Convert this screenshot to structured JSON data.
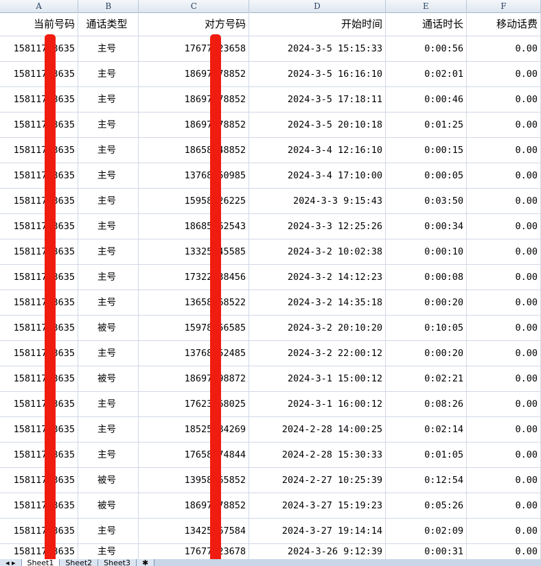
{
  "columns": [
    "A",
    "B",
    "C",
    "D",
    "E",
    "F"
  ],
  "headers": [
    "当前号码",
    "通话类型",
    "对方号码",
    "开始时间",
    "通话时长",
    "移动话费"
  ],
  "rows": [
    [
      "15811753635",
      "主号",
      "17677123658",
      "2024-3-5 15:15:33",
      "0:00:56",
      "0.00"
    ],
    [
      "15811753635",
      "主号",
      "18697378852",
      "2024-3-5 16:16:10",
      "0:02:01",
      "0.00"
    ],
    [
      "15811753635",
      "主号",
      "18697378852",
      "2024-3-5 17:18:11",
      "0:00:46",
      "0.00"
    ],
    [
      "15811753635",
      "主号",
      "18697378852",
      "2024-3-5 20:10:18",
      "0:01:25",
      "0.00"
    ],
    [
      "15811753635",
      "主号",
      "18658848852",
      "2024-3-4 12:16:10",
      "0:00:15",
      "0.00"
    ],
    [
      "15811753635",
      "主号",
      "13768250985",
      "2024-3-4 17:10:00",
      "0:00:05",
      "0.00"
    ],
    [
      "15811753635",
      "主号",
      "15958426225",
      "2024-3-3 9:15:43",
      "0:03:50",
      "0.00"
    ],
    [
      "15811753635",
      "主号",
      "18685562543",
      "2024-3-3 12:25:26",
      "0:00:34",
      "0.00"
    ],
    [
      "15811753635",
      "主号",
      "13325545585",
      "2024-3-2 10:02:38",
      "0:00:10",
      "0.00"
    ],
    [
      "15811753635",
      "主号",
      "17322538456",
      "2024-3-2 14:12:23",
      "0:00:08",
      "0.00"
    ],
    [
      "15811753635",
      "主号",
      "13658568522",
      "2024-3-2 14:35:18",
      "0:00:20",
      "0.00"
    ],
    [
      "15811753635",
      "被号",
      "15978156585",
      "2024-3-2 20:10:20",
      "0:10:05",
      "0.00"
    ],
    [
      "15811753635",
      "主号",
      "13768252485",
      "2024-3-2 22:00:12",
      "0:00:20",
      "0.00"
    ],
    [
      "15811753635",
      "被号",
      "18697598872",
      "2024-3-1 15:00:12",
      "0:02:21",
      "0.00"
    ],
    [
      "15811753635",
      "主号",
      "17623568025",
      "2024-3-1 16:00:12",
      "0:08:26",
      "0.00"
    ],
    [
      "15811753635",
      "主号",
      "18525584269",
      "2024-2-28 14:00:25",
      "0:02:14",
      "0.00"
    ],
    [
      "15811753635",
      "主号",
      "17658474844",
      "2024-2-28 15:30:33",
      "0:01:05",
      "0.00"
    ],
    [
      "15811753635",
      "被号",
      "13958265852",
      "2024-2-27 10:25:39",
      "0:12:54",
      "0.00"
    ],
    [
      "15811753635",
      "被号",
      "18697378852",
      "2024-3-27 15:19:23",
      "0:05:26",
      "0.00"
    ],
    [
      "15811753635",
      "主号",
      "13425567584",
      "2024-3-27 19:14:14",
      "0:02:09",
      "0.00"
    ],
    [
      "15811753635",
      "主号",
      "17677123678",
      "2024-3-26 9:12:39",
      "0:00:31",
      "0.00"
    ]
  ],
  "sheet_tabs": [
    "Sheet1",
    "Sheet2",
    "Sheet3"
  ],
  "highlight_color": "#f01c10"
}
